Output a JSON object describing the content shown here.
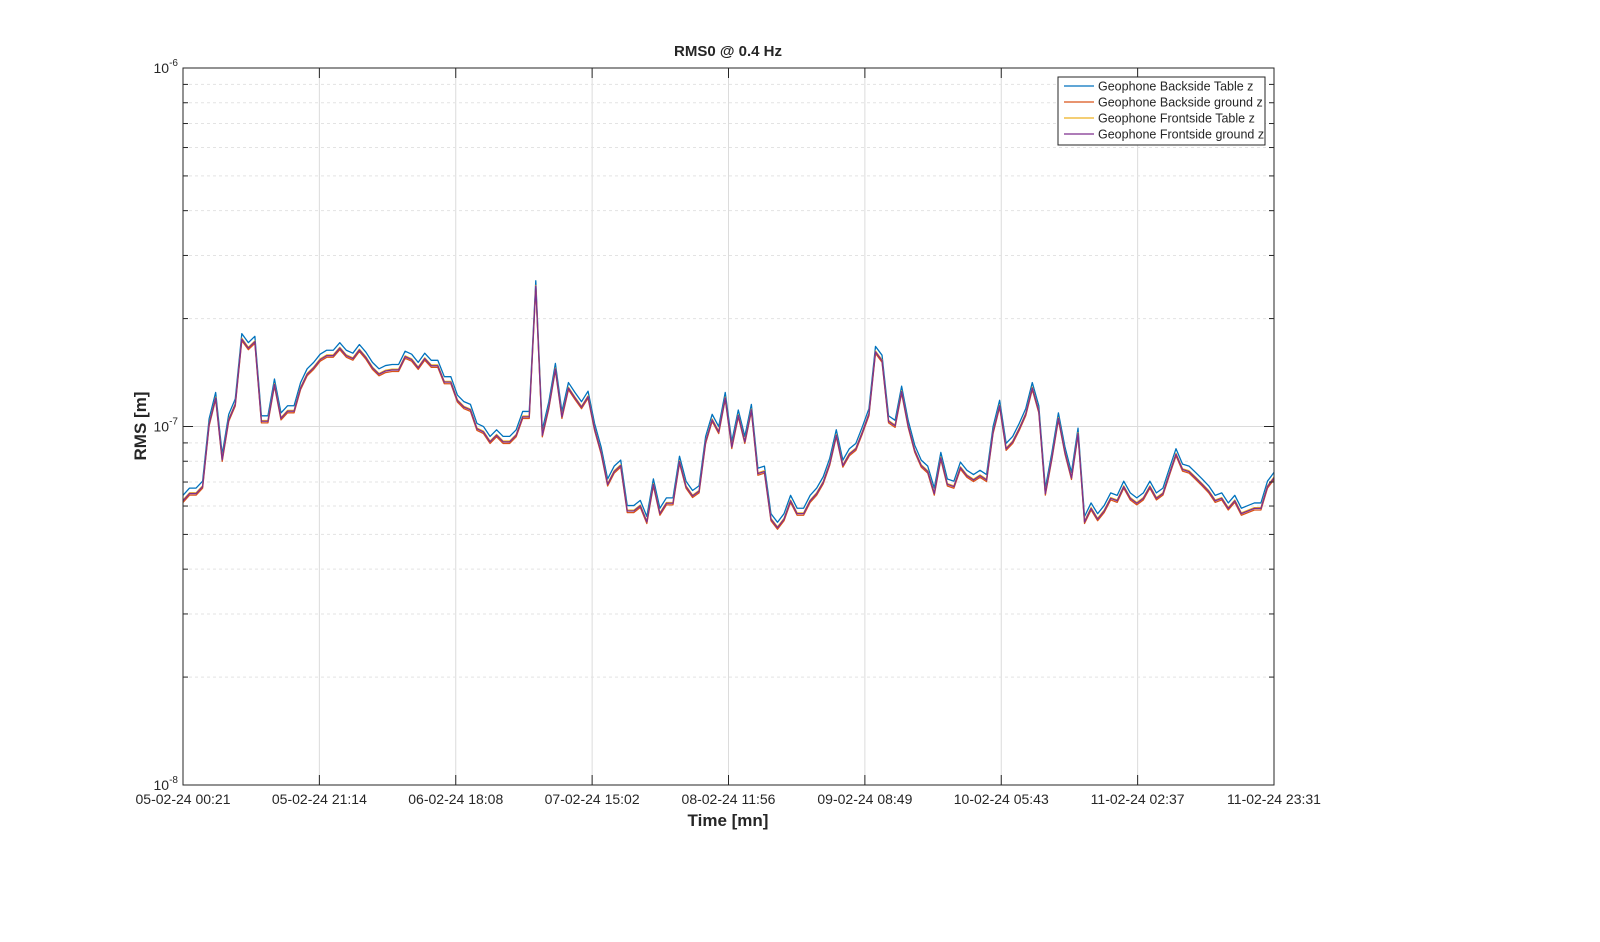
{
  "chart_data": {
    "type": "line",
    "title": "RMS0 @ 0.4 Hz",
    "xlabel": "Time [mn]",
    "ylabel": "RMS [m]",
    "yscale": "log",
    "ylim": [
      1e-08,
      1e-06
    ],
    "grid": true,
    "minor_grid": true,
    "legend_location": "top-right",
    "x_tick_labels": [
      "05-02-24 00:21",
      "05-02-24 21:14",
      "06-02-24 18:08",
      "07-02-24 15:02",
      "08-02-24 11:56",
      "09-02-24 08:49",
      "10-02-24 05:43",
      "11-02-24 02:37",
      "11-02-24 23:31"
    ],
    "y_tick_labels": [
      {
        "base": "10",
        "exp": "-6",
        "value": 1e-06
      },
      {
        "base": "10",
        "exp": "-7",
        "value": 1e-07
      },
      {
        "base": "10",
        "exp": "-8",
        "value": 1e-08
      }
    ],
    "x_start": "05-02-24 00:21",
    "x_step_minutes": 40,
    "base_values": [
      6.3e-08,
      6.6e-08,
      6.6e-08,
      6.9e-08,
      1.03e-07,
      1.22e-07,
      8.2e-08,
      1.06e-07,
      1.17e-07,
      1.78e-07,
      1.68e-07,
      1.75e-07,
      1.05e-07,
      1.05e-07,
      1.33e-07,
      1.07e-07,
      1.12e-07,
      1.12e-07,
      1.3e-07,
      1.42e-07,
      1.48e-07,
      1.56e-07,
      1.6e-07,
      1.6e-07,
      1.68e-07,
      1.6e-07,
      1.57e-07,
      1.66e-07,
      1.58e-07,
      1.48e-07,
      1.42e-07,
      1.45e-07,
      1.46e-07,
      1.46e-07,
      1.59e-07,
      1.56e-07,
      1.48e-07,
      1.57e-07,
      1.5e-07,
      1.5e-07,
      1.35e-07,
      1.35e-07,
      1.2e-07,
      1.15e-07,
      1.13e-07,
      1e-07,
      9.8e-08,
      9.2e-08,
      9.6e-08,
      9.2e-08,
      9.2e-08,
      9.6e-08,
      1.08e-07,
      1.08e-07,
      2.5e-07,
      9.6e-08,
      1.15e-07,
      1.47e-07,
      1.08e-07,
      1.3e-07,
      1.22e-07,
      1.15e-07,
      1.23e-07,
      1e-07,
      8.6e-08,
      7e-08,
      7.6e-08,
      7.9e-08,
      5.9e-08,
      5.9e-08,
      6.1e-08,
      5.5e-08,
      7e-08,
      5.8e-08,
      6.2e-08,
      6.2e-08,
      8.1e-08,
      6.9e-08,
      6.5e-08,
      6.7e-08,
      9.2e-08,
      1.06e-07,
      9.8e-08,
      1.22e-07,
      8.9e-08,
      1.09e-07,
      9.2e-08,
      1.13e-07,
      7.5e-08,
      7.6e-08,
      5.6e-08,
      5.3e-08,
      5.6e-08,
      6.3e-08,
      5.8e-08,
      5.8e-08,
      6.3e-08,
      6.6e-08,
      7.1e-08,
      8e-08,
      9.6e-08,
      7.9e-08,
      8.5e-08,
      8.8e-08,
      9.8e-08,
      1.1e-07,
      1.64e-07,
      1.55e-07,
      1.05e-07,
      1.02e-07,
      1.27e-07,
      1.02e-07,
      8.7e-08,
      7.9e-08,
      7.6e-08,
      6.6e-08,
      8.3e-08,
      7e-08,
      6.9e-08,
      7.8e-08,
      7.4e-08,
      7.2e-08,
      7.4e-08,
      7.2e-08,
      9.8e-08,
      1.16e-07,
      8.8e-08,
      9.2e-08,
      1e-07,
      1.1e-07,
      1.3e-07,
      1.12e-07,
      6.6e-08,
      8.3e-08,
      1.07e-07,
      8.6e-08,
      7.3e-08,
      9.7e-08,
      5.5e-08,
      6e-08,
      5.6e-08,
      5.9e-08,
      6.4e-08,
      6.3e-08,
      6.9e-08,
      6.4e-08,
      6.2e-08,
      6.4e-08,
      6.9e-08,
      6.4e-08,
      6.6e-08,
      7.5e-08,
      8.5e-08,
      7.7e-08,
      7.6e-08,
      7.3e-08,
      7e-08,
      6.7e-08,
      6.3e-08,
      6.4e-08,
      6e-08,
      6.3e-08,
      5.8e-08,
      5.9e-08,
      6e-08,
      6e-08,
      6.9e-08,
      7.3e-08
    ],
    "series": [
      {
        "name": "Geophone Backside Table z",
        "color": "#0072BD",
        "factor": 1.02
      },
      {
        "name": "Geophone Backside ground z",
        "color": "#D95319",
        "factor": 0.975
      },
      {
        "name": "Geophone Frontside Table z",
        "color": "#EDB120",
        "factor": 0.99
      },
      {
        "name": "Geophone Frontside ground z",
        "color": "#7E2F8E",
        "factor": 0.985
      }
    ]
  }
}
